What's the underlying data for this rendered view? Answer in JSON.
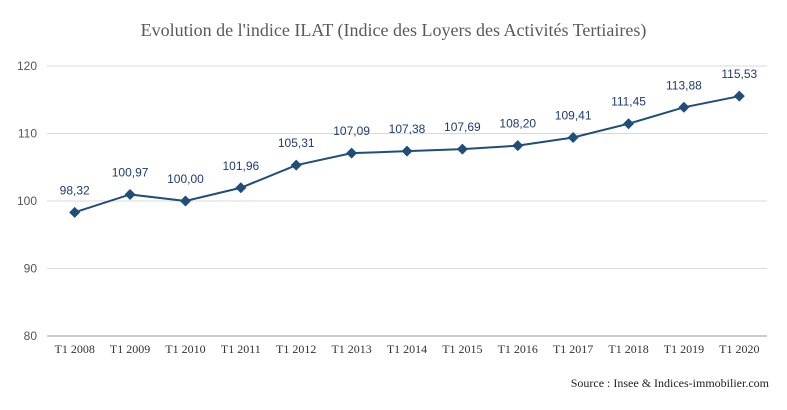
{
  "chart_data": {
    "type": "line",
    "title": "Evolution de l'indice ILAT (Indice des Loyers des Activités Tertiaires)",
    "categories": [
      "T1 2008",
      "T1 2009",
      "T1 2010",
      "T1 2011",
      "T1 2012",
      "T1 2013",
      "T1 2014",
      "T1 2015",
      "T1 2016",
      "T1 2017",
      "T1 2018",
      "T1 2019",
      "T1 2020"
    ],
    "series": [
      {
        "values": [
          98.32,
          100.97,
          100.0,
          101.96,
          105.31,
          107.09,
          107.38,
          107.69,
          108.2,
          109.41,
          111.45,
          113.88,
          115.53
        ],
        "labels": [
          "98,32",
          "100,97",
          "100,00",
          "101,96",
          "105,31",
          "107,09",
          "107,38",
          "107,69",
          "108,20",
          "109,41",
          "111,45",
          "113,88",
          "115,53"
        ],
        "color": "#1f4e79",
        "marker": "diamond"
      }
    ],
    "xlabel": "",
    "ylabel": "",
    "ylim": [
      80,
      120
    ],
    "yticks": [
      "80",
      "90",
      "100",
      "110",
      "120"
    ],
    "grid": true,
    "source": "Source : Insee & Indices-immobilier.com"
  }
}
